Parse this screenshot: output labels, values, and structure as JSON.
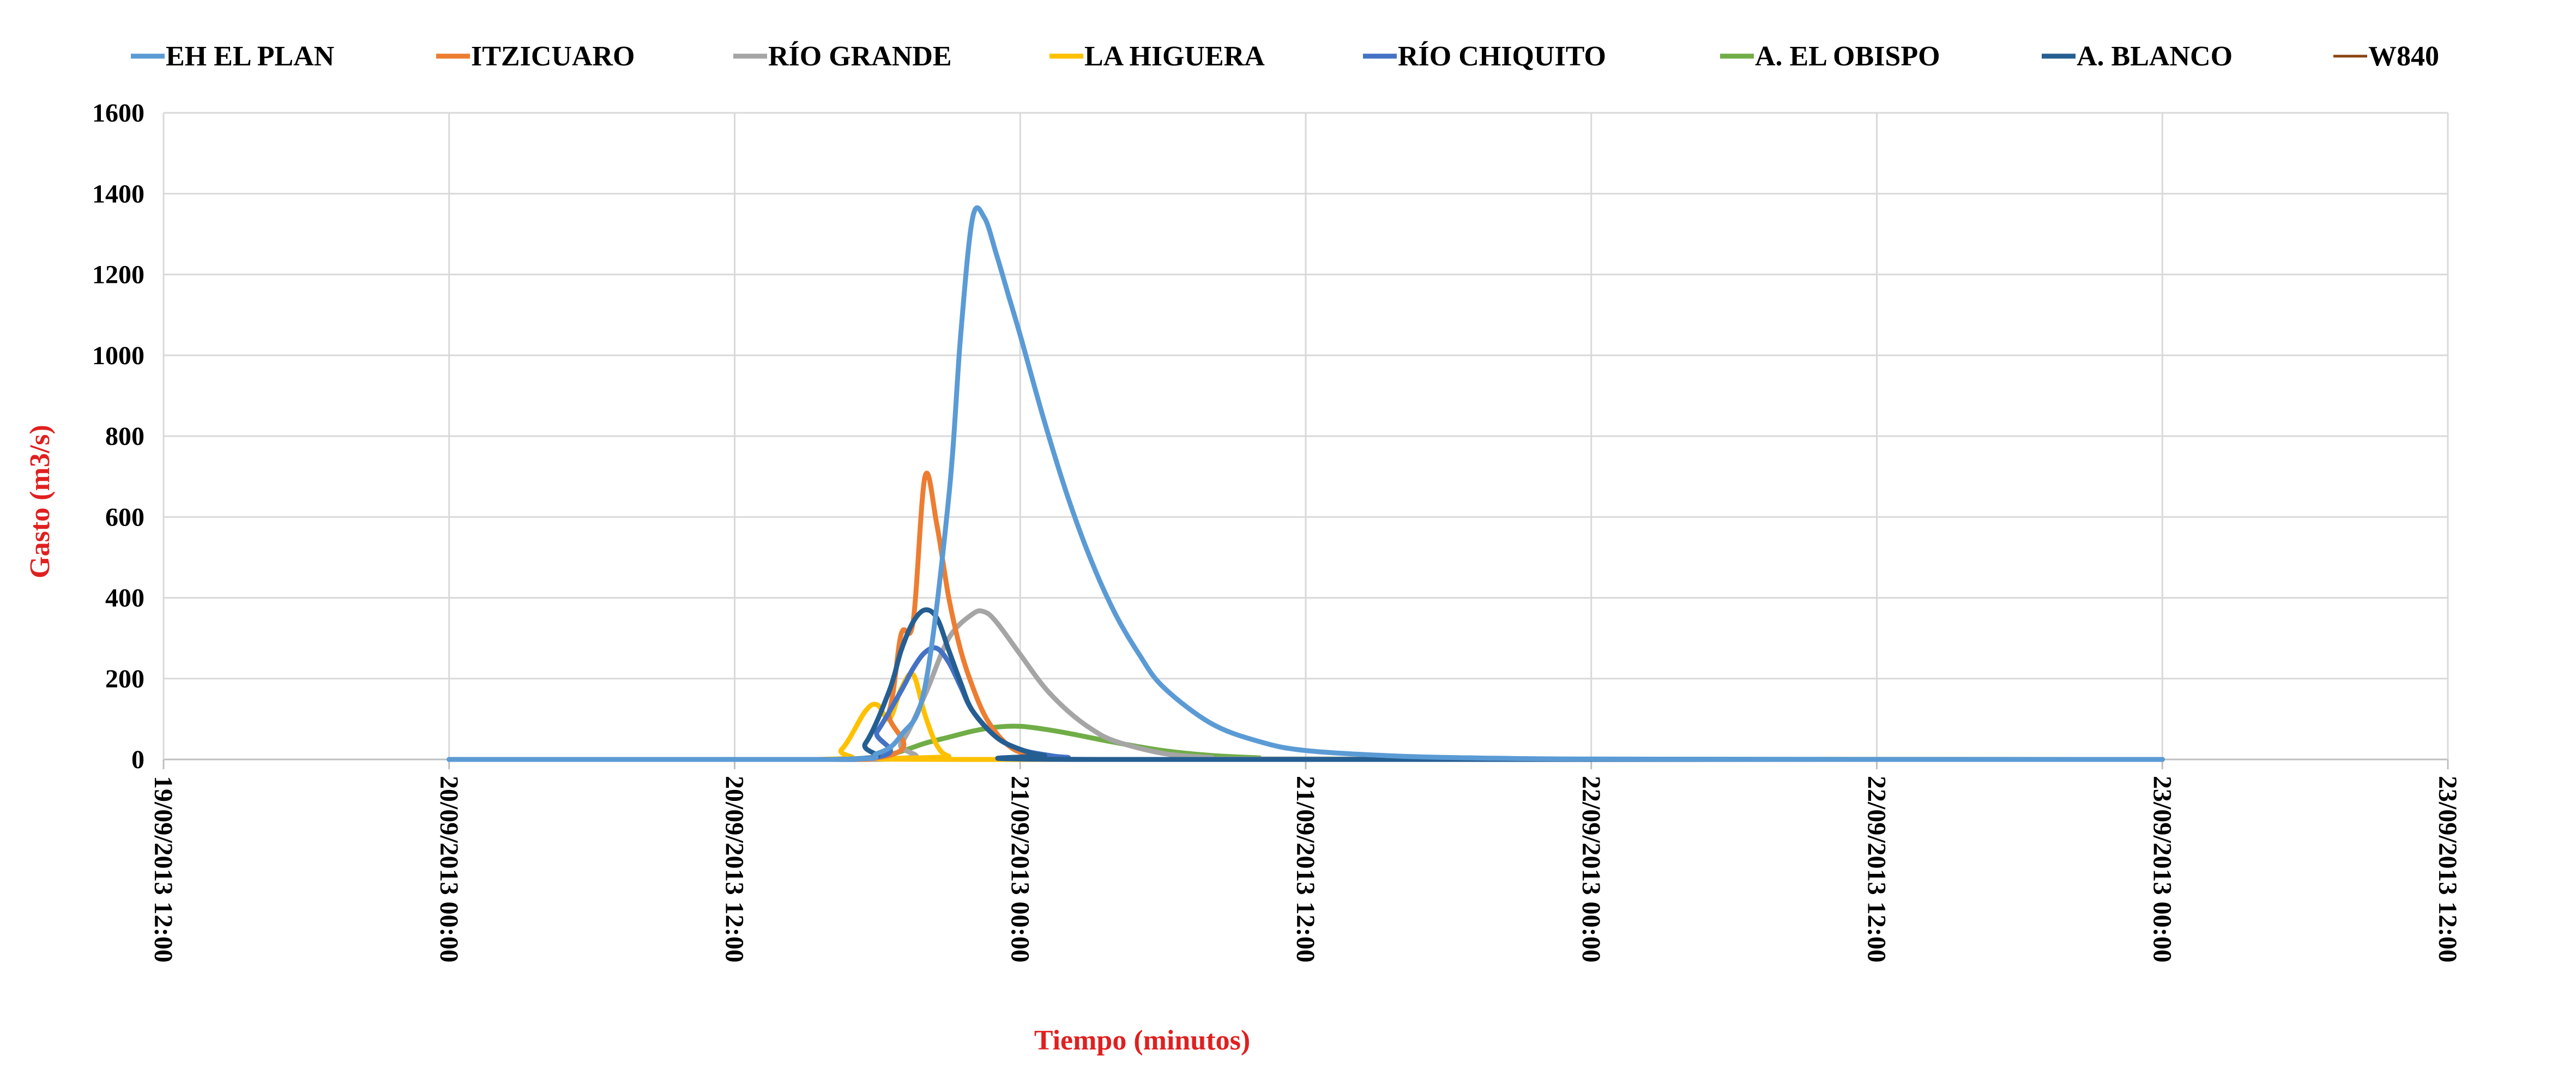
{
  "chart_data": {
    "type": "line",
    "title": "",
    "xlabel": "Tiempo (minutos)",
    "ylabel": "Gasto (m3/s)",
    "axis_title_color": "#E02020",
    "ylim": [
      0,
      1600
    ],
    "yticks": [
      0,
      200,
      400,
      600,
      800,
      1000,
      1200,
      1400,
      1600
    ],
    "xlim": [
      "19/09/2013 12:00",
      "23/09/2013 12:00"
    ],
    "xticks": [
      "19/09/2013 12:00",
      "20/09/2013 00:00",
      "20/09/2013 12:00",
      "21/09/2013 00:00",
      "21/09/2013 12:00",
      "22/09/2013 00:00",
      "22/09/2013 12:00",
      "23/09/2013 00:00",
      "23/09/2013 12:00"
    ],
    "grid": true,
    "legend_position": "top",
    "series": [
      {
        "name": "EH EL PLAN",
        "color": "#5B9BD5",
        "x": [
          "20/09/2013 00:00",
          "20/09/2013 16:00",
          "20/09/2013 18:00",
          "20/09/2013 19:00",
          "20/09/2013 20:00",
          "20/09/2013 21:00",
          "20/09/2013 21:30",
          "20/09/2013 22:00",
          "20/09/2013 22:30",
          "20/09/2013 23:00",
          "20/09/2013 23:30",
          "21/09/2013 00:00",
          "21/09/2013 01:00",
          "21/09/2013 02:00",
          "21/09/2013 03:00",
          "21/09/2013 04:00",
          "21/09/2013 05:00",
          "21/09/2013 06:00",
          "21/09/2013 08:00",
          "21/09/2013 10:00",
          "21/09/2013 12:00",
          "21/09/2013 16:00",
          "21/09/2013 20:00",
          "22/09/2013 00:00",
          "22/09/2013 12:00",
          "23/09/2013 00:00"
        ],
        "y": [
          0,
          0,
          15,
          60,
          180,
          650,
          1050,
          1340,
          1340,
          1250,
          1150,
          1050,
          840,
          650,
          490,
          360,
          260,
          180,
          90,
          45,
          22,
          8,
          3,
          1,
          0,
          0
        ]
      },
      {
        "name": "ITZICUARO",
        "color": "#ED7D31",
        "x": [
          "20/09/2013 00:00",
          "20/09/2013 17:30",
          "20/09/2013 18:30",
          "20/09/2013 19:00",
          "20/09/2013 19:30",
          "20/09/2013 20:00",
          "20/09/2013 20:30",
          "20/09/2013 21:00",
          "20/09/2013 21:30",
          "20/09/2013 22:00",
          "20/09/2013 22:30",
          "20/09/2013 23:00",
          "20/09/2013 23:30",
          "21/09/2013 00:00",
          "21/09/2013 01:00",
          "21/09/2013 02:00",
          "21/09/2013 04:00",
          "23/09/2013 00:00"
        ],
        "y": [
          0,
          0,
          120,
          310,
          340,
          700,
          580,
          400,
          270,
          180,
          110,
          65,
          35,
          18,
          5,
          2,
          0,
          0
        ]
      },
      {
        "name": "RÍO GRANDE",
        "color": "#A5A5A5",
        "x": [
          "20/09/2013 00:00",
          "20/09/2013 18:00",
          "20/09/2013 19:00",
          "20/09/2013 20:00",
          "20/09/2013 21:00",
          "20/09/2013 22:00",
          "20/09/2013 22:30",
          "20/09/2013 23:00",
          "21/09/2013 00:00",
          "21/09/2013 01:00",
          "21/09/2013 02:00",
          "21/09/2013 03:00",
          "21/09/2013 04:00",
          "21/09/2013 06:00",
          "21/09/2013 08:00",
          "21/09/2013 10:00",
          "23/09/2013 00:00"
        ],
        "y": [
          0,
          0,
          40,
          160,
          300,
          360,
          365,
          340,
          260,
          180,
          120,
          75,
          45,
          15,
          5,
          1,
          0
        ]
      },
      {
        "name": "LA HIGUERA",
        "color": "#FFC000",
        "x": [
          "20/09/2013 00:00",
          "20/09/2013 15:30",
          "20/09/2013 16:30",
          "20/09/2013 17:30",
          "20/09/2013 18:00",
          "20/09/2013 18:30",
          "20/09/2013 19:00",
          "20/09/2013 19:30",
          "20/09/2013 20:00",
          "20/09/2013 20:30",
          "20/09/2013 21:00",
          "20/09/2013 22:00",
          "23/09/2013 00:00"
        ],
        "y": [
          0,
          0,
          25,
          120,
          135,
          100,
          175,
          210,
          110,
          35,
          8,
          0,
          0
        ]
      },
      {
        "name": "RÍO CHIQUITO",
        "color": "#4472C4",
        "x": [
          "20/09/2013 00:00",
          "20/09/2013 17:00",
          "20/09/2013 18:00",
          "20/09/2013 19:00",
          "20/09/2013 19:30",
          "20/09/2013 20:00",
          "20/09/2013 20:30",
          "20/09/2013 21:00",
          "20/09/2013 21:30",
          "20/09/2013 22:00",
          "20/09/2013 23:00",
          "21/09/2013 00:00",
          "21/09/2013 01:00",
          "21/09/2013 02:00",
          "21/09/2013 04:00",
          "23/09/2013 00:00"
        ],
        "y": [
          0,
          0,
          70,
          170,
          225,
          265,
          275,
          240,
          180,
          120,
          55,
          25,
          12,
          5,
          0,
          0
        ]
      },
      {
        "name": "A. EL OBISPO",
        "color": "#70AD47",
        "x": [
          "20/09/2013 00:00",
          "20/09/2013 17:00",
          "20/09/2013 18:00",
          "20/09/2013 19:00",
          "20/09/2013 20:00",
          "20/09/2013 21:00",
          "20/09/2013 22:00",
          "20/09/2013 23:00",
          "21/09/2013 00:00",
          "21/09/2013 01:00",
          "21/09/2013 02:00",
          "21/09/2013 04:00",
          "21/09/2013 06:00",
          "21/09/2013 08:00",
          "21/09/2013 10:00",
          "21/09/2013 12:00",
          "23/09/2013 00:00"
        ],
        "y": [
          0,
          0,
          5,
          20,
          40,
          55,
          70,
          80,
          82,
          75,
          65,
          42,
          22,
          10,
          4,
          1,
          0
        ]
      },
      {
        "name": "A. BLANCO",
        "color": "#255E91",
        "x": [
          "20/09/2013 00:00",
          "20/09/2013 16:30",
          "20/09/2013 17:30",
          "20/09/2013 18:30",
          "20/09/2013 19:00",
          "20/09/2013 19:30",
          "20/09/2013 20:00",
          "20/09/2013 20:30",
          "20/09/2013 21:00",
          "20/09/2013 21:30",
          "20/09/2013 22:00",
          "20/09/2013 23:00",
          "21/09/2013 00:00",
          "21/09/2013 01:00",
          "21/09/2013 03:00",
          "23/09/2013 00:00"
        ],
        "y": [
          0,
          0,
          40,
          170,
          270,
          340,
          370,
          350,
          270,
          190,
          120,
          55,
          25,
          10,
          0,
          0
        ]
      },
      {
        "name": "W840",
        "color": "#8B4513",
        "x": [
          "20/09/2013 00:00",
          "23/09/2013 00:00"
        ],
        "y": [
          0,
          0
        ]
      }
    ]
  }
}
